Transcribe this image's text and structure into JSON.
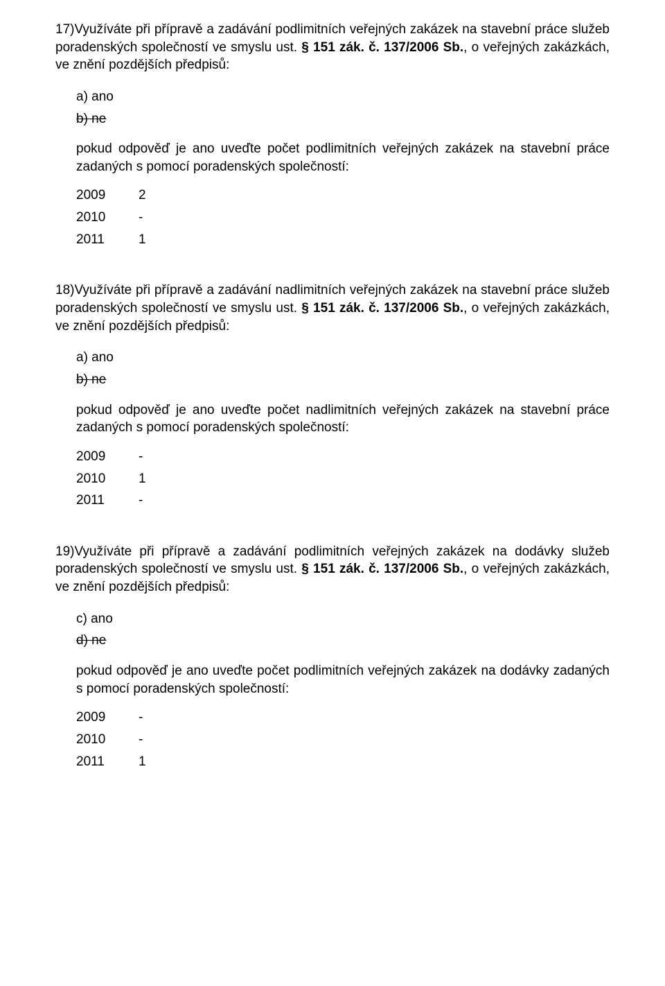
{
  "q17": {
    "number": "17)",
    "text_pre": "Využíváte při přípravě a zadávání podlimitních veřejných zakázek na stavební práce služeb poradenských společností ve smyslu ust. ",
    "text_bold": "§ 151 zák. č. 137/2006 Sb.",
    "text_post": ", o veřejných zakázkách, ve znění pozdějších předpisů:",
    "opt_a": "a)  ano",
    "opt_b": "b)  ne",
    "follow": "pokud odpověď je ano uveďte počet podlimitních veřejných zakázek na stavební práce zadaných s pomocí poradenských společností:",
    "y2009_label": "2009",
    "y2009_val": "2",
    "y2010_label": "2010",
    "y2010_val": "-",
    "y2011_label": "2011",
    "y2011_val": "1"
  },
  "q18": {
    "number": "18)",
    "text_pre": "Využíváte při přípravě a zadávání nadlimitních veřejných zakázek na stavební práce služeb poradenských společností ve smyslu ust. ",
    "text_bold": "§ 151 zák. č. 137/2006 Sb.",
    "text_post": ", o veřejných zakázkách, ve znění pozdějších předpisů:",
    "opt_a": "a)  ano",
    "opt_b": "b)  ne",
    "follow": "pokud odpověď je ano uveďte počet nadlimitních veřejných zakázek na stavební práce zadaných s pomocí poradenských společností:",
    "y2009_label": "2009",
    "y2009_val": "-",
    "y2010_label": "2010",
    "y2010_val": "1",
    "y2011_label": "2011",
    "y2011_val": "-"
  },
  "q19": {
    "number": "19)",
    "text_pre": "Využíváte při přípravě a zadávání podlimitních veřejných zakázek na dodávky služeb poradenských společností ve smyslu ust. ",
    "text_bold": "§ 151 zák. č. 137/2006 Sb.",
    "text_post": ", o veřejných zakázkách, ve znění pozdějších předpisů:",
    "opt_c": "c)  ano",
    "opt_d": "d)  ne",
    "follow": "pokud odpověď je ano uveďte počet podlimitních veřejných zakázek na dodávky zadaných s pomocí poradenských společností:",
    "y2009_label": "2009",
    "y2009_val": "-",
    "y2010_label": "2010",
    "y2010_val": "-",
    "y2011_label": "2011",
    "y2011_val": "1"
  }
}
